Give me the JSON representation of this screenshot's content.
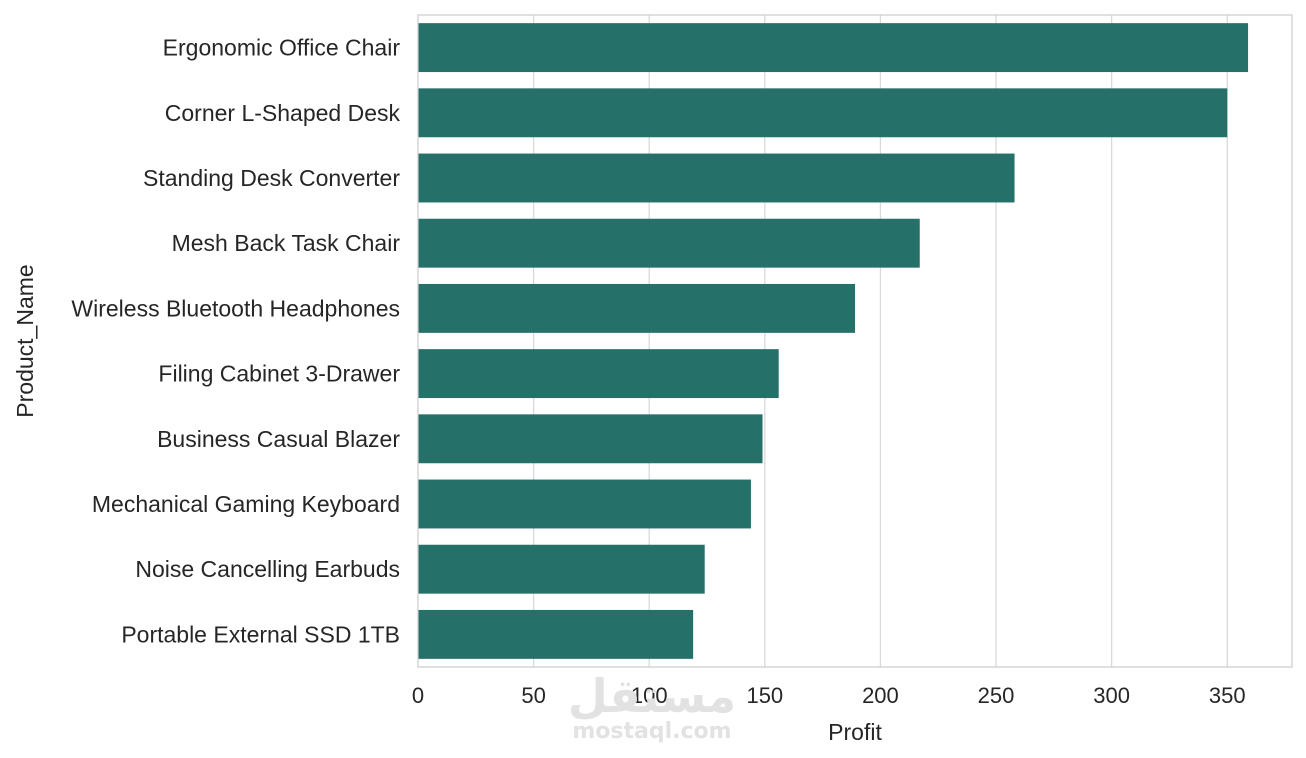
{
  "chart_data": {
    "type": "bar",
    "orientation": "horizontal",
    "categories": [
      "Ergonomic Office Chair",
      "Corner L-Shaped Desk",
      "Standing Desk Converter",
      "Mesh Back Task Chair",
      "Wireless Bluetooth Headphones",
      "Filing Cabinet 3-Drawer",
      "Business Casual Blazer",
      "Mechanical Gaming Keyboard",
      "Noise Cancelling Earbuds",
      "Portable External SSD 1TB"
    ],
    "values": [
      359,
      350,
      258,
      217,
      189,
      156,
      149,
      144,
      124,
      119
    ],
    "xlabel": "Profit",
    "ylabel": "Product_Name",
    "xlim": [
      0,
      378
    ],
    "xticks": [
      0,
      50,
      100,
      150,
      200,
      250,
      300,
      350
    ],
    "grid": "vertical",
    "bar_color": "#26706a"
  },
  "watermark": {
    "arabic": "مستقل",
    "latin": "mostaql.com"
  }
}
